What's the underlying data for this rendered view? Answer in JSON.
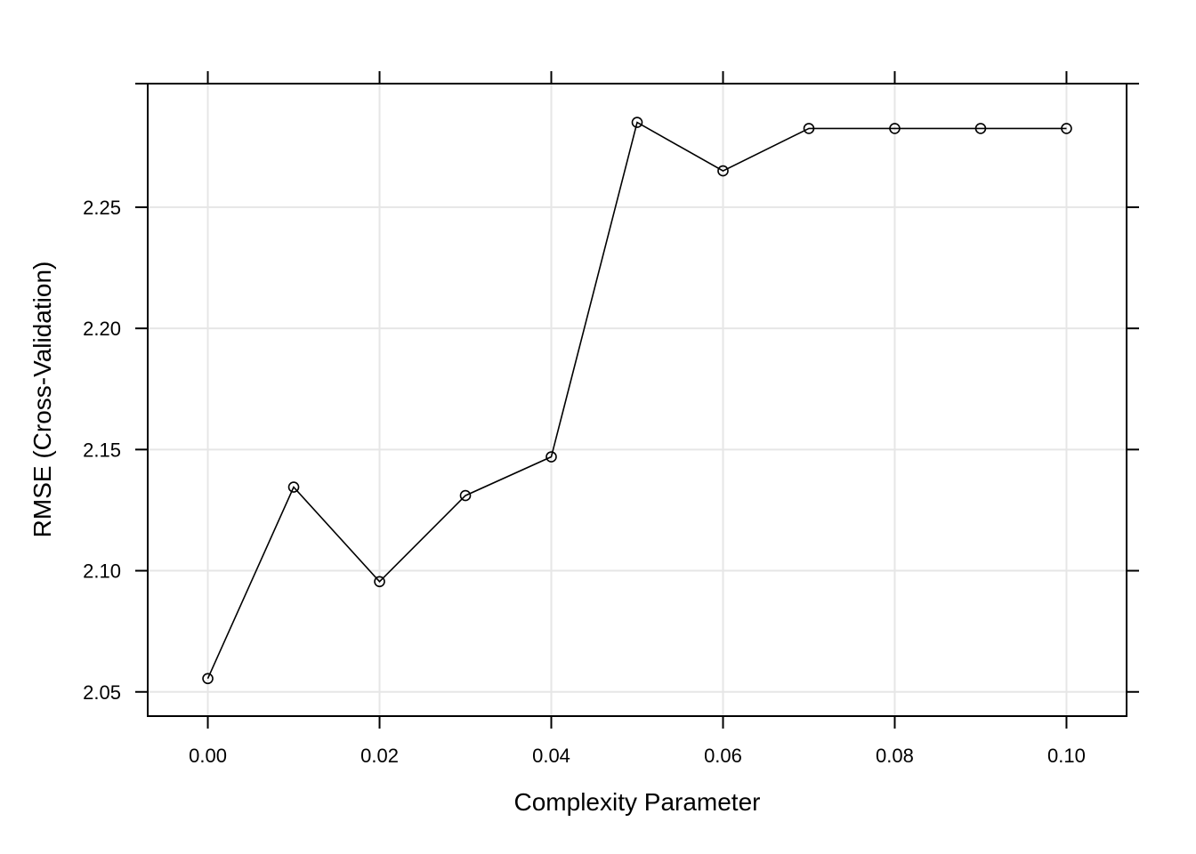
{
  "chart_data": {
    "type": "line",
    "xlabel": "Complexity Parameter",
    "ylabel": "RMSE (Cross-Validation)",
    "x": [
      0.0,
      0.01,
      0.02,
      0.03,
      0.04,
      0.05,
      0.06,
      0.07,
      0.08,
      0.09,
      0.1
    ],
    "series": [
      {
        "values": [
          2.0555,
          2.1345,
          2.0955,
          2.131,
          2.147,
          2.285,
          2.265,
          2.2825,
          2.2825,
          2.2825,
          2.2825
        ]
      }
    ],
    "xlim": [
      -0.007,
      0.107
    ],
    "ylim": [
      2.04,
      2.301
    ],
    "x_ticks": [
      0.0,
      0.02,
      0.04,
      0.06,
      0.08,
      0.1
    ],
    "x_tick_labels": [
      "0.00",
      "0.02",
      "0.04",
      "0.06",
      "0.08",
      "0.10"
    ],
    "y_ticks": [
      2.05,
      2.1,
      2.15,
      2.2,
      2.25
    ],
    "y_tick_labels": [
      "2.05",
      "2.10",
      "2.15",
      "2.20",
      "2.25"
    ],
    "grid": true,
    "marker": "open-circle",
    "colors": {
      "line": "#000000",
      "grid": "#e6e6e6",
      "background": "#ffffff"
    }
  }
}
